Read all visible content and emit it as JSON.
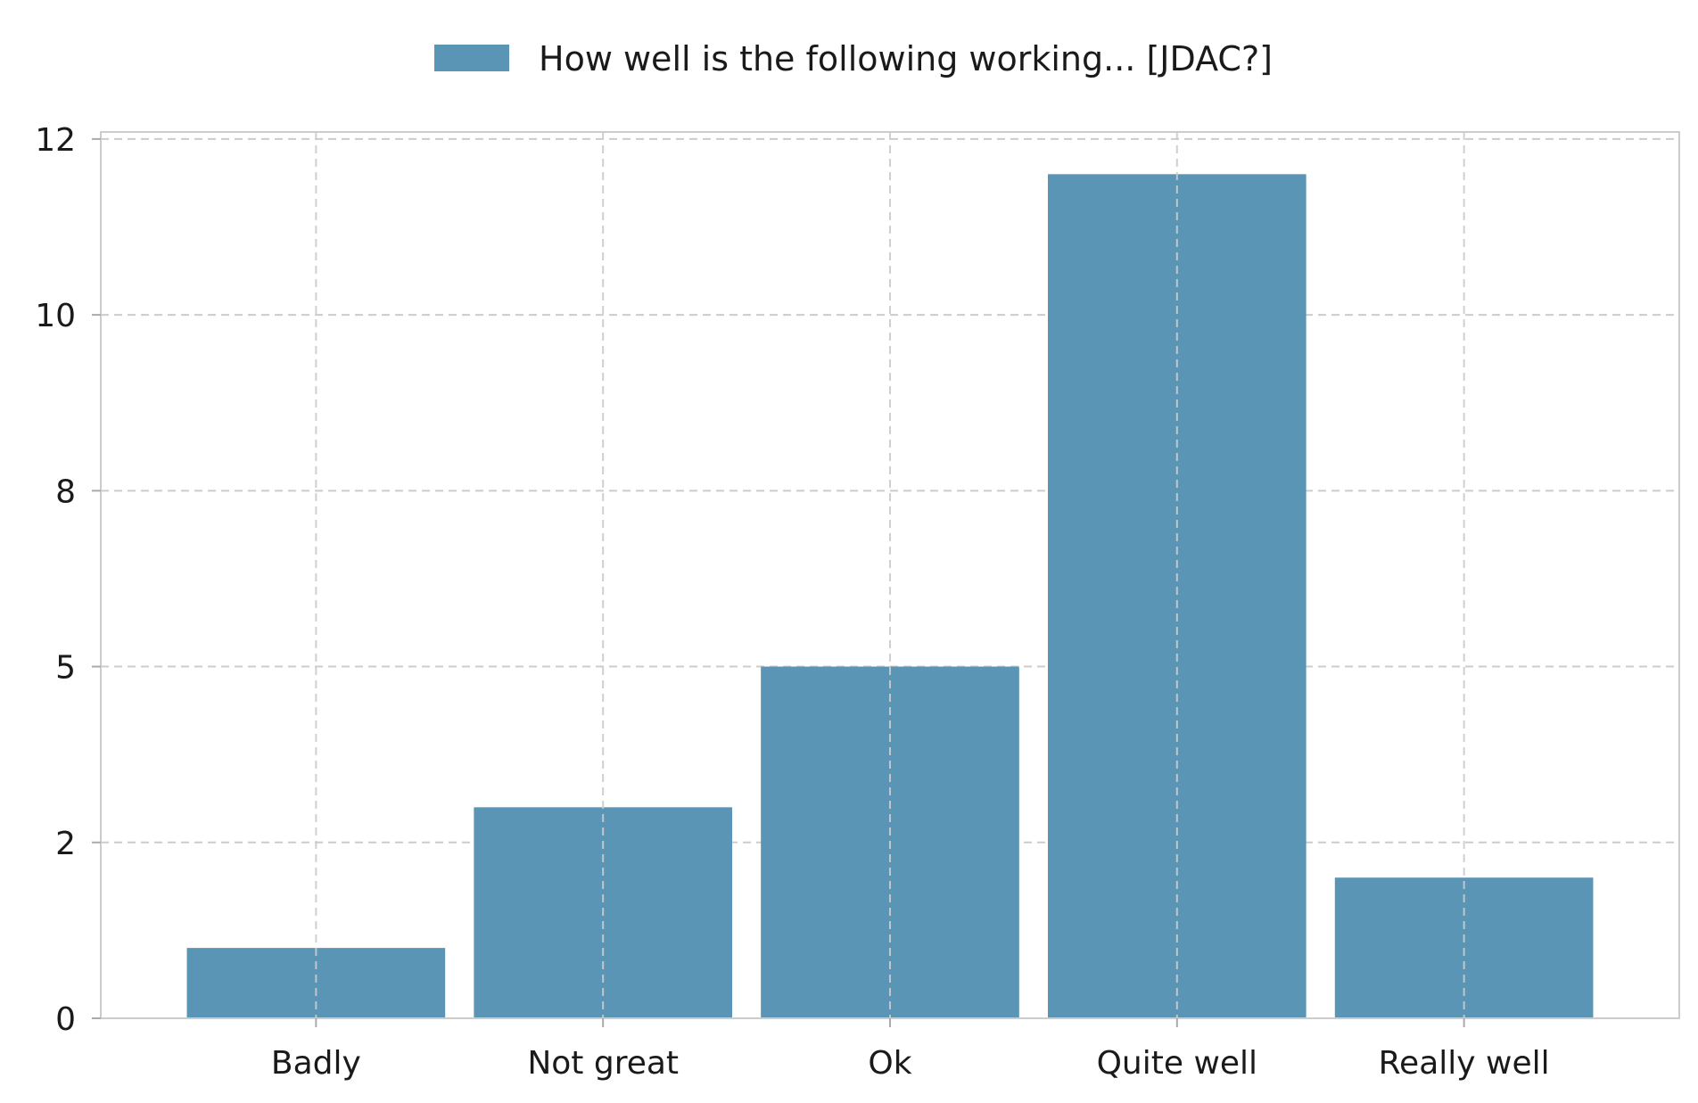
{
  "chart_data": {
    "type": "bar",
    "categories": [
      "Badly",
      "Not great",
      "Ok",
      "Quite well",
      "Really well"
    ],
    "series": [
      {
        "name": "How well is the following working... [JDAC?]",
        "values": [
          1,
          3,
          5,
          12,
          2
        ],
        "color": "#5b95b5"
      }
    ],
    "yticks": [
      {
        "value": 0,
        "label": "0"
      },
      {
        "value": 2.5,
        "label": "2"
      },
      {
        "value": 5,
        "label": "5"
      },
      {
        "value": 7.5,
        "label": "8"
      },
      {
        "value": 10,
        "label": "10"
      },
      {
        "value": 12.5,
        "label": "12"
      }
    ],
    "ylim": [
      0,
      12.6
    ],
    "grid": true,
    "grid_color": "#cccccc",
    "legend_position": "top-center"
  }
}
